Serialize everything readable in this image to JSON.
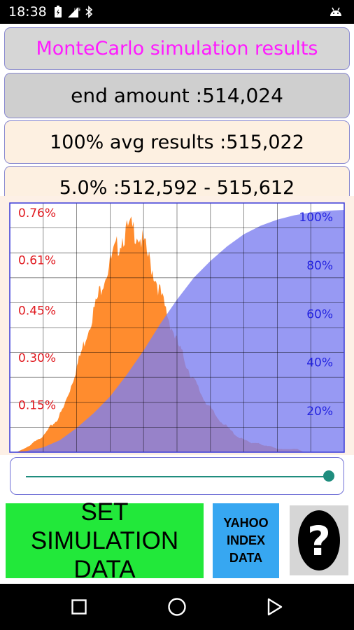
{
  "status_bar": {
    "time": "18:38",
    "icons": [
      "battery-saver-icon",
      "signal-lte-icon",
      "bluetooth-icon",
      "android-debug-icon"
    ]
  },
  "header": {
    "title": "MonteCarlo simulation results",
    "end_amount": "end amount :514,024",
    "avg_results": "100% avg results :515,022",
    "confidence": "5.0% :512,592 - 515,612"
  },
  "chart_data": {
    "type": "area",
    "left_axis_ticks": [
      "0.76%",
      "0.61%",
      "0.45%",
      "0.30%",
      "0.15%"
    ],
    "right_axis_ticks": [
      "100%",
      "80%",
      "60%",
      "40%",
      "20%"
    ],
    "left_tick_values": [
      0.76,
      0.61,
      0.45,
      0.3,
      0.15
    ],
    "right_tick_values": [
      100,
      80,
      60,
      40,
      20
    ],
    "ylim_left": [
      0,
      0.76
    ],
    "ylim_right": [
      0,
      100
    ],
    "grid": true,
    "series": [
      {
        "type": "histogram",
        "x": [
          0,
          2,
          4,
          6,
          8,
          10,
          12,
          14,
          16,
          18,
          20,
          22,
          24,
          26,
          28,
          30,
          32,
          34,
          36,
          38,
          40,
          42,
          44,
          46,
          48,
          50,
          52,
          54,
          56,
          58,
          60,
          62,
          64,
          66,
          68,
          70,
          72,
          74,
          76,
          78,
          80,
          82,
          84,
          86,
          88,
          90,
          92,
          94,
          96,
          98,
          100
        ],
        "y": [
          0.0,
          0.0,
          0.01,
          0.02,
          0.04,
          0.05,
          0.08,
          0.1,
          0.14,
          0.2,
          0.27,
          0.34,
          0.41,
          0.48,
          0.55,
          0.6,
          0.65,
          0.69,
          0.71,
          0.7,
          0.66,
          0.6,
          0.54,
          0.47,
          0.41,
          0.35,
          0.3,
          0.25,
          0.21,
          0.17,
          0.14,
          0.11,
          0.09,
          0.07,
          0.05,
          0.04,
          0.03,
          0.03,
          0.02,
          0.02,
          0.01,
          0.01,
          0.01,
          0.01,
          0.0,
          0.0,
          0.0,
          0.0,
          0.0,
          0.0,
          0.0
        ]
      },
      {
        "type": "cumulative",
        "x": [
          0,
          5,
          10,
          15,
          20,
          25,
          30,
          35,
          40,
          45,
          50,
          55,
          60,
          65,
          70,
          75,
          80,
          85,
          90,
          95,
          100
        ],
        "y": [
          0,
          0.5,
          2,
          5,
          10,
          16,
          23,
          32,
          42,
          53,
          63,
          72,
          79,
          85,
          90,
          93.5,
          96,
          97.8,
          99,
          99.7,
          100
        ]
      }
    ],
    "colors": {
      "histogram": "#ff8c2e",
      "cumulative": "#7d80f0",
      "overlap": "#9a6b93",
      "left_labels": "#e0181e",
      "right_labels": "#2424e0"
    }
  },
  "slider": {
    "value": 1.0
  },
  "buttons": {
    "set_simulation": "SET SIMULATION\nDATA",
    "yahoo": "YAHOO\nINDEX\nDATA",
    "help": "?"
  },
  "nav": {
    "icons": [
      "back-square-icon",
      "home-circle-icon",
      "recents-triangle-icon"
    ]
  }
}
